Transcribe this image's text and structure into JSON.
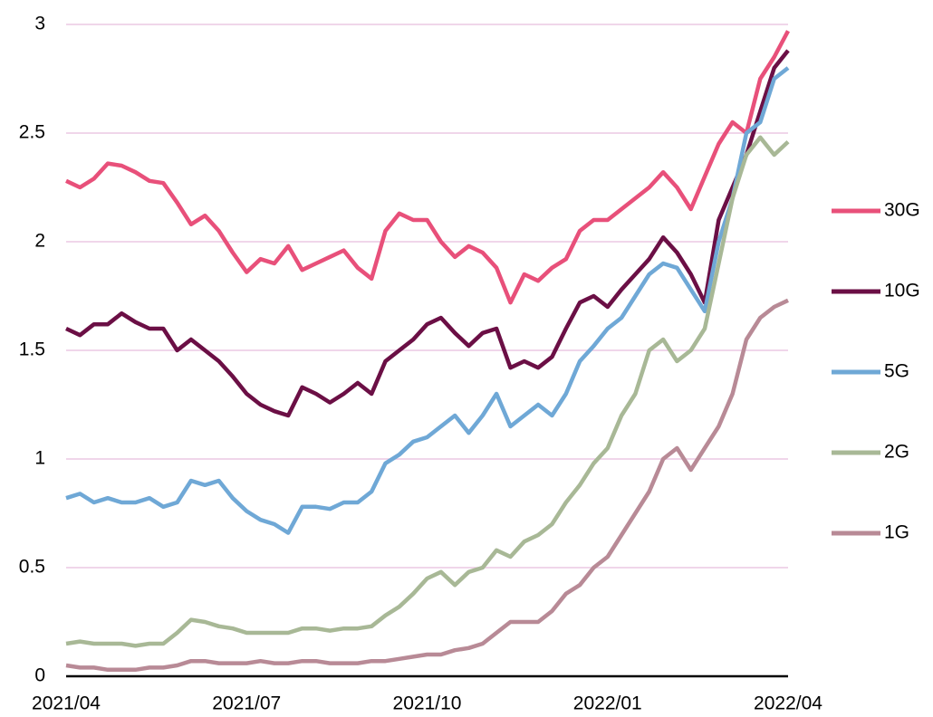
{
  "chart_data": {
    "type": "line",
    "categories": [
      "2021/04",
      null,
      null,
      null,
      null,
      null,
      null,
      null,
      null,
      null,
      null,
      null,
      null,
      "2021/07",
      null,
      null,
      null,
      null,
      null,
      null,
      null,
      null,
      null,
      null,
      null,
      null,
      "2021/10",
      null,
      null,
      null,
      null,
      null,
      null,
      null,
      null,
      null,
      null,
      null,
      null,
      "2022/01",
      null,
      null,
      null,
      null,
      null,
      null,
      null,
      null,
      null,
      null,
      null,
      null,
      "2022/04"
    ],
    "series": [
      {
        "name": "30G",
        "color": "#e8507a",
        "values": [
          2.28,
          2.25,
          2.29,
          2.36,
          2.35,
          2.32,
          2.28,
          2.27,
          2.18,
          2.08,
          2.12,
          2.05,
          1.95,
          1.86,
          1.92,
          1.9,
          1.98,
          1.87,
          1.9,
          1.93,
          1.96,
          1.88,
          1.83,
          2.05,
          2.13,
          2.1,
          2.1,
          2.0,
          1.93,
          1.98,
          1.95,
          1.88,
          1.72,
          1.85,
          1.82,
          1.88,
          1.92,
          2.05,
          2.1,
          2.1,
          2.15,
          2.2,
          2.25,
          2.32,
          2.25,
          2.15,
          2.3,
          2.45,
          2.55,
          2.5,
          2.75,
          2.85,
          2.97
        ]
      },
      {
        "name": "10G",
        "color": "#6b0f45",
        "values": [
          1.6,
          1.57,
          1.62,
          1.62,
          1.67,
          1.63,
          1.6,
          1.6,
          1.5,
          1.55,
          1.5,
          1.45,
          1.38,
          1.3,
          1.25,
          1.22,
          1.2,
          1.33,
          1.3,
          1.26,
          1.3,
          1.35,
          1.3,
          1.45,
          1.5,
          1.55,
          1.62,
          1.65,
          1.58,
          1.52,
          1.58,
          1.6,
          1.42,
          1.45,
          1.42,
          1.47,
          1.6,
          1.72,
          1.75,
          1.7,
          1.78,
          1.85,
          1.92,
          2.02,
          1.95,
          1.85,
          1.72,
          2.1,
          2.25,
          2.4,
          2.6,
          2.8,
          2.88
        ]
      },
      {
        "name": "5G",
        "color": "#6fa8d6",
        "values": [
          0.82,
          0.84,
          0.8,
          0.82,
          0.8,
          0.8,
          0.82,
          0.78,
          0.8,
          0.9,
          0.88,
          0.9,
          0.82,
          0.76,
          0.72,
          0.7,
          0.66,
          0.78,
          0.78,
          0.77,
          0.8,
          0.8,
          0.85,
          0.98,
          1.02,
          1.08,
          1.1,
          1.15,
          1.2,
          1.12,
          1.2,
          1.3,
          1.15,
          1.2,
          1.25,
          1.2,
          1.3,
          1.45,
          1.52,
          1.6,
          1.65,
          1.75,
          1.85,
          1.9,
          1.88,
          1.78,
          1.68,
          2.0,
          2.2,
          2.5,
          2.55,
          2.75,
          2.8
        ]
      },
      {
        "name": "2G",
        "color": "#a8b896",
        "values": [
          0.15,
          0.16,
          0.15,
          0.15,
          0.15,
          0.14,
          0.15,
          0.15,
          0.2,
          0.26,
          0.25,
          0.23,
          0.22,
          0.2,
          0.2,
          0.2,
          0.2,
          0.22,
          0.22,
          0.21,
          0.22,
          0.22,
          0.23,
          0.28,
          0.32,
          0.38,
          0.45,
          0.48,
          0.42,
          0.48,
          0.5,
          0.58,
          0.55,
          0.62,
          0.65,
          0.7,
          0.8,
          0.88,
          0.98,
          1.05,
          1.2,
          1.3,
          1.5,
          1.55,
          1.45,
          1.5,
          1.6,
          1.9,
          2.2,
          2.4,
          2.48,
          2.4,
          2.46
        ]
      },
      {
        "name": "1G",
        "color": "#b88a96",
        "values": [
          0.05,
          0.04,
          0.04,
          0.03,
          0.03,
          0.03,
          0.04,
          0.04,
          0.05,
          0.07,
          0.07,
          0.06,
          0.06,
          0.06,
          0.07,
          0.06,
          0.06,
          0.07,
          0.07,
          0.06,
          0.06,
          0.06,
          0.07,
          0.07,
          0.08,
          0.09,
          0.1,
          0.1,
          0.12,
          0.13,
          0.15,
          0.2,
          0.25,
          0.25,
          0.25,
          0.3,
          0.38,
          0.42,
          0.5,
          0.55,
          0.65,
          0.75,
          0.85,
          1.0,
          1.05,
          0.95,
          1.05,
          1.15,
          1.3,
          1.55,
          1.65,
          1.7,
          1.73
        ]
      }
    ],
    "ylim": [
      0,
      3
    ],
    "yticks": [
      0,
      0.5,
      1,
      1.5,
      2,
      2.5,
      3
    ],
    "grid": true,
    "legend": "right"
  }
}
